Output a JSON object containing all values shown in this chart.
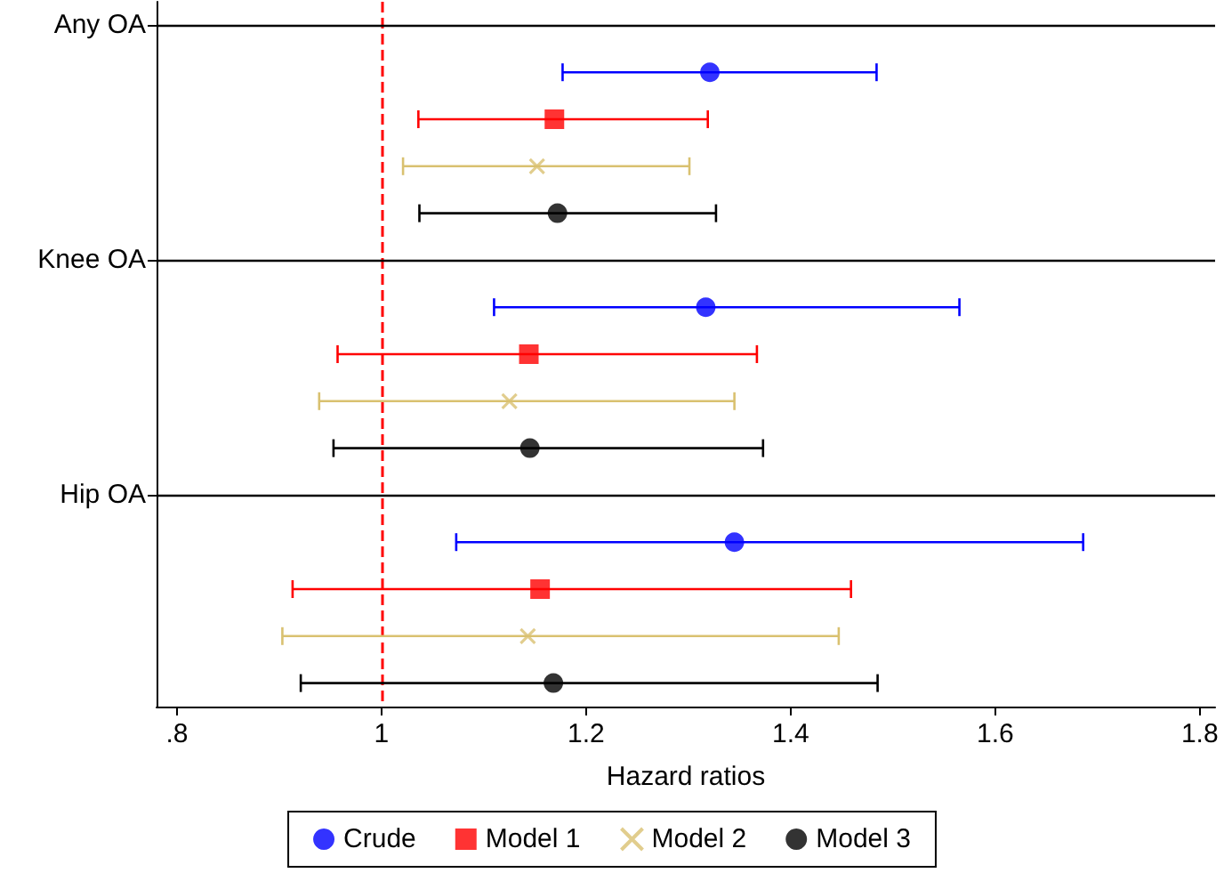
{
  "chart_data": {
    "type": "scatter",
    "orientation": "horizontal",
    "xlabel": "Hazard ratios",
    "categories": [
      "Any OA",
      null,
      null,
      null,
      null,
      "Knee OA",
      null,
      null,
      null,
      null,
      "Hip OA",
      null,
      null,
      null,
      null
    ],
    "series": [
      {
        "name": "Crude",
        "color": "#0000ff",
        "marker": "circle",
        "values": [
          null,
          1.321,
          null,
          null,
          null,
          null,
          1.317,
          null,
          null,
          null,
          null,
          1.345,
          null,
          null,
          null
        ],
        "errors": [
          null,
          [
            1.177,
            1.484
          ],
          null,
          null,
          null,
          null,
          [
            1.11,
            1.565
          ],
          null,
          null,
          null,
          null,
          [
            1.073,
            1.686
          ],
          null,
          null,
          null
        ]
      },
      {
        "name": "Model 1",
        "color": "#ff0000",
        "marker": "square",
        "values": [
          null,
          null,
          1.169,
          null,
          null,
          null,
          null,
          1.144,
          null,
          null,
          null,
          null,
          1.155,
          null,
          null
        ],
        "errors": [
          null,
          null,
          [
            1.036,
            1.319
          ],
          null,
          null,
          null,
          null,
          [
            0.957,
            1.367
          ],
          null,
          null,
          null,
          null,
          [
            0.913,
            1.459
          ],
          null,
          null
        ]
      },
      {
        "name": "Model 2",
        "color": "#d9c170",
        "marker": "cross",
        "values": [
          null,
          null,
          null,
          1.152,
          null,
          null,
          null,
          null,
          1.125,
          null,
          null,
          null,
          null,
          1.143,
          null
        ],
        "errors": [
          null,
          null,
          null,
          [
            1.021,
            1.301
          ],
          null,
          null,
          null,
          null,
          [
            0.939,
            1.345
          ],
          null,
          null,
          null,
          null,
          [
            0.903,
            1.447
          ],
          null
        ]
      },
      {
        "name": "Model 3",
        "color": "#000000",
        "marker": "circle",
        "values": [
          null,
          null,
          null,
          null,
          1.172,
          null,
          null,
          null,
          null,
          1.145,
          null,
          null,
          null,
          null,
          1.168
        ],
        "errors": [
          null,
          null,
          null,
          null,
          [
            1.037,
            1.327
          ],
          null,
          null,
          null,
          null,
          [
            0.953,
            1.373
          ],
          null,
          null,
          null,
          null,
          [
            0.921,
            1.485
          ]
        ]
      }
    ],
    "xlim": [
      0.78,
      1.815
    ],
    "xticks": [
      {
        "value": 0.8,
        "label": ".8"
      },
      1,
      1.2,
      1.4,
      1.6,
      1.8
    ],
    "ref_lines": [
      {
        "axis": "x",
        "value": 1,
        "color": "#ff0000",
        "line_style": "dashed"
      },
      {
        "axis": "y",
        "value": "Any OA",
        "color": "#000000",
        "line_style": "solid"
      },
      {
        "axis": "y",
        "value": "Knee OA",
        "color": "#000000",
        "line_style": "solid"
      },
      {
        "axis": "y",
        "value": "Hip OA",
        "color": "#000000",
        "line_style": "solid"
      }
    ],
    "grid": false,
    "legend": "bottom"
  }
}
